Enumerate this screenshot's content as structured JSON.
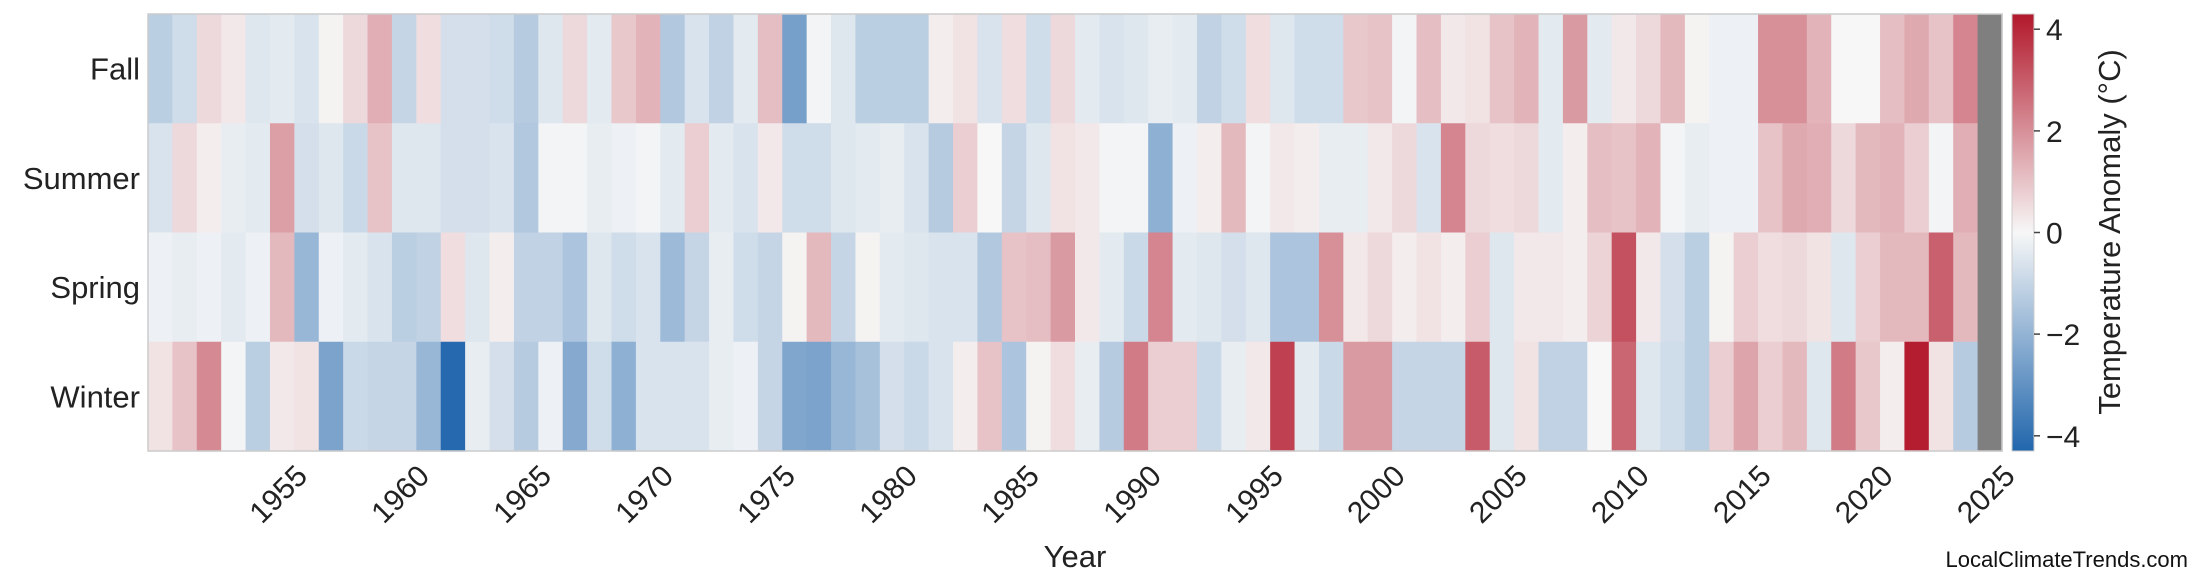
{
  "chart_data": {
    "type": "heatmap",
    "xlabel": "Year",
    "ylabel": "",
    "colorbar_label": "Temperature Anomaly (°C)",
    "colorbar_range": [
      -4.3,
      4.3
    ],
    "colorbar_ticks": [
      -4,
      -2,
      0,
      2,
      4
    ],
    "colormap": [
      "#2166ac",
      "#f7f7f7",
      "#b2182b"
    ],
    "missing_color": "#7f7f7f",
    "rows": [
      "Fall",
      "Summer",
      "Spring",
      "Winter"
    ],
    "x_start": 1950,
    "x_end": 2025,
    "xticks": [
      1955,
      1960,
      1965,
      1970,
      1975,
      1980,
      1985,
      1990,
      1995,
      2000,
      2005,
      2010,
      2015,
      2020,
      2025
    ],
    "values": {
      "Fall": [
        -1.2,
        -0.8,
        0.6,
        0.3,
        -0.5,
        -0.4,
        -0.6,
        0.1,
        0.6,
        1.4,
        -1.0,
        0.5,
        -0.7,
        -0.7,
        -0.8,
        -1.3,
        -0.5,
        0.6,
        -0.4,
        0.9,
        1.3,
        -1.4,
        -0.6,
        -1.1,
        -0.4,
        1.1,
        -2.6,
        -0.1,
        -0.5,
        -1.2,
        -1.2,
        -1.2,
        0.2,
        0.4,
        -0.6,
        0.5,
        -0.8,
        0.6,
        -0.4,
        -0.6,
        -0.5,
        -0.3,
        -0.4,
        -1.1,
        -0.8,
        0.5,
        -0.5,
        -0.8,
        -0.8,
        0.9,
        1.0,
        -0.1,
        1.1,
        0.3,
        0.4,
        1.0,
        1.3,
        -0.4,
        1.8,
        -0.4,
        0.3,
        0.6,
        1.2,
        0.1,
        -0.2,
        -0.2,
        2.0,
        2.0,
        1.3,
        0.0,
        0.0,
        1.1,
        1.5,
        1.0,
        2.2,
        null
      ],
      "Summer": [
        -0.6,
        0.6,
        0.2,
        -0.3,
        -0.4,
        1.7,
        -0.7,
        -0.5,
        -0.9,
        1.0,
        -0.5,
        -0.5,
        -0.7,
        -0.7,
        -0.6,
        -1.4,
        -0.1,
        -0.1,
        -0.3,
        -0.2,
        -0.1,
        -0.4,
        0.8,
        -0.4,
        -0.6,
        0.3,
        -0.8,
        -0.8,
        -0.5,
        -0.4,
        -0.3,
        -0.6,
        -1.3,
        0.8,
        0.0,
        -1.0,
        -0.5,
        0.4,
        0.3,
        -0.1,
        -0.1,
        -2.1,
        -0.2,
        0.2,
        1.2,
        -0.1,
        0.3,
        0.2,
        -0.3,
        -0.3,
        0.3,
        0.6,
        -0.6,
        2.2,
        0.6,
        0.5,
        0.6,
        -0.4,
        0.2,
        1.1,
        1.0,
        1.3,
        -0.1,
        -0.3,
        -0.2,
        -0.2,
        1.0,
        1.5,
        1.4,
        0.6,
        1.2,
        1.3,
        0.8,
        -0.1,
        1.4,
        null
      ],
      "Spring": [
        -0.2,
        -0.3,
        -0.2,
        -0.4,
        -0.2,
        1.2,
        -1.9,
        -0.2,
        -0.4,
        -0.6,
        -1.2,
        -1.1,
        0.5,
        -0.5,
        0.2,
        -1.1,
        -1.1,
        -1.5,
        -0.5,
        -0.8,
        -0.6,
        -1.8,
        -1.0,
        -0.3,
        -0.8,
        -1.0,
        0.1,
        1.2,
        -1.0,
        0.1,
        -0.4,
        -0.5,
        -0.6,
        -0.6,
        -1.4,
        1.0,
        1.1,
        1.8,
        0.3,
        -0.4,
        -0.9,
        2.2,
        -0.4,
        -0.5,
        -0.7,
        -0.5,
        -1.5,
        -1.5,
        2.0,
        0.3,
        0.6,
        0.2,
        0.4,
        0.2,
        0.8,
        -0.5,
        0.3,
        0.3,
        0.2,
        0.7,
        3.2,
        0.3,
        -0.7,
        -1.2,
        0.1,
        0.8,
        0.5,
        0.6,
        0.4,
        -0.5,
        0.8,
        1.2,
        1.2,
        2.9,
        1.2
      ],
      "Winter": [
        0.4,
        1.0,
        2.1,
        -0.1,
        -1.2,
        0.3,
        0.4,
        -2.5,
        -0.9,
        -1.0,
        -1.0,
        -1.9,
        -4.2,
        -0.3,
        -0.7,
        -1.3,
        -0.2,
        -2.3,
        -0.8,
        -2.1,
        -0.6,
        -0.6,
        -0.6,
        -0.3,
        -0.2,
        -1.0,
        -2.4,
        -2.5,
        -1.9,
        -1.6,
        -0.7,
        -0.9,
        -0.6,
        0.2,
        1.0,
        -1.5,
        0.1,
        0.5,
        -0.3,
        -1.3,
        2.4,
        0.8,
        0.8,
        -0.9,
        -0.3,
        0.3,
        3.5,
        -0.4,
        -0.9,
        1.8,
        1.8,
        -1.0,
        -1.0,
        -1.0,
        3.0,
        -0.5,
        0.4,
        -1.1,
        -1.1,
        0.0,
        2.8,
        -0.5,
        -0.8,
        -1.2,
        0.8,
        1.6,
        0.8,
        1.2,
        -0.5,
        2.4,
        0.9,
        0.2,
        4.2,
        0.4,
        -1.3
      ]
    }
  },
  "credit": "LocalClimateTrends.com"
}
